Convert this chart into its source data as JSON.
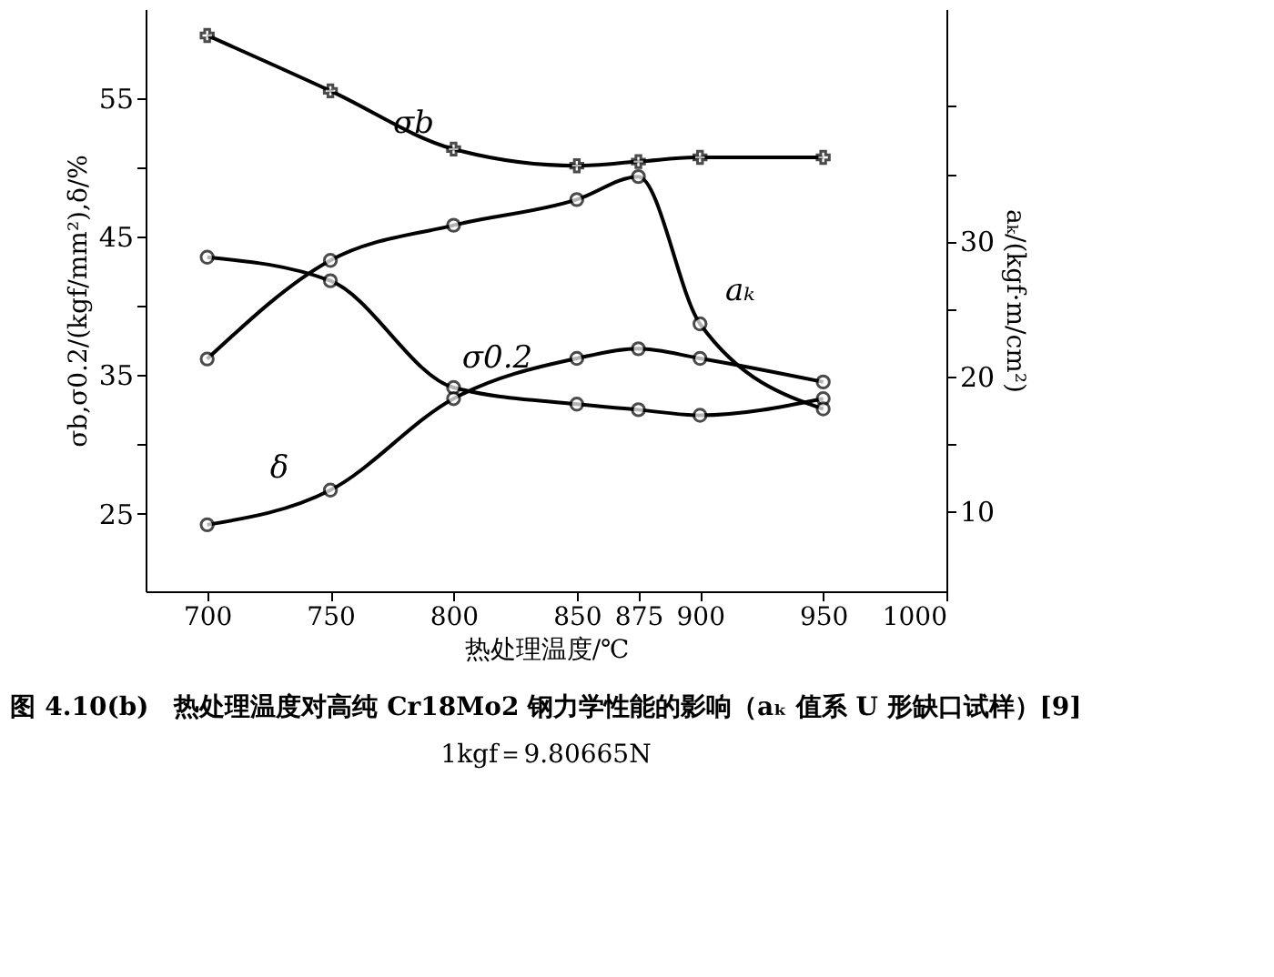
{
  "chart_data": {
    "type": "line",
    "title": "图 4.10(b)　热处理温度对高纯 Cr18Mo2 钢力学性能的影响（aₖ 值系 U 形缺口试样）[9]",
    "annotations": [
      "1kgf＝9.80665N"
    ],
    "xlabel": "热处理温度/℃",
    "ylabel": "σb,σ0.2/(kgf/mm²),δ/%",
    "y2label": "aₖ/(kgf·m/cm²)",
    "x": [
      700,
      750,
      800,
      850,
      875,
      900,
      950
    ],
    "series": [
      {
        "name": "σb",
        "color": "#000000",
        "marker": "cross",
        "values": [
          59.5,
          55.5,
          51.3,
          50.1,
          50.4,
          50.7,
          50.7
        ]
      },
      {
        "name": "σ0.2",
        "color": "#000000",
        "marker": "circle",
        "values": [
          43.5,
          41.8,
          34.1,
          32.9,
          32.5,
          32.1,
          33.3
        ]
      },
      {
        "name": "δ",
        "color": "#000000",
        "marker": "circle",
        "values": [
          24.2,
          26.7,
          33.3,
          36.2,
          36.9,
          36.2,
          34.5
        ]
      },
      {
        "name": "aₖ",
        "color": "#000000",
        "marker": "circle",
        "axis": "y2",
        "values": [
          21.3,
          28.6,
          31.2,
          33.1,
          34.8,
          23.9,
          17.6
        ]
      }
    ],
    "xlim": [
      675,
      1000
    ],
    "xticks": [
      700,
      750,
      800,
      850,
      875,
      900,
      950,
      1000
    ],
    "ylim": [
      19.4,
      61.4
    ],
    "yticks": [
      25,
      {
        "value": 30,
        "label": null
      },
      35,
      {
        "value": 40,
        "label": null
      },
      45,
      {
        "value": 50,
        "label": null
      },
      55
    ],
    "y2lim": [
      4.1,
      47.2
    ],
    "y2ticks": [
      10,
      {
        "value": 15,
        "label": null
      },
      20,
      {
        "value": 25,
        "label": null
      },
      30,
      {
        "value": 35,
        "label": null
      },
      {
        "value": 40,
        "label": null
      }
    ],
    "grid": false,
    "line_style": "solid"
  }
}
